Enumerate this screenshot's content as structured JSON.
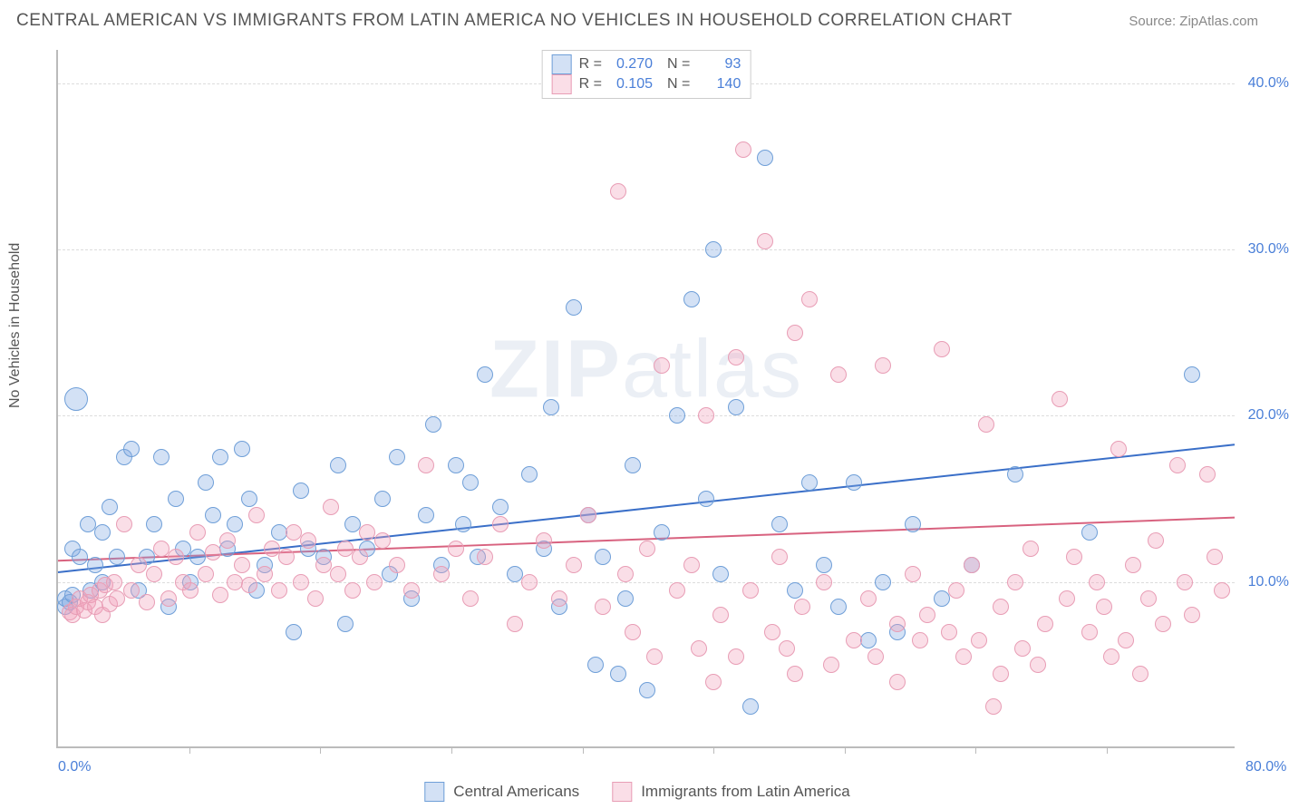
{
  "title": "CENTRAL AMERICAN VS IMMIGRANTS FROM LATIN AMERICA NO VEHICLES IN HOUSEHOLD CORRELATION CHART",
  "source_label": "Source:",
  "source_name": "ZipAtlas.com",
  "y_axis_title": "No Vehicles in Household",
  "watermark": "ZIPatlas",
  "chart": {
    "type": "scatter",
    "xlim": [
      0,
      80
    ],
    "ylim": [
      0,
      42
    ],
    "xtick_labels": [
      "0.0%",
      "80.0%"
    ],
    "xtick_positions": [
      0,
      80
    ],
    "vtick_positions": [
      8.9,
      17.8,
      26.7,
      35.6,
      44.5,
      53.4,
      62.3,
      71.2
    ],
    "ytick_labels": [
      "10.0%",
      "20.0%",
      "30.0%",
      "40.0%"
    ],
    "ytick_positions": [
      10,
      20,
      30,
      40
    ],
    "grid_color": "#dddddd",
    "background_color": "#ffffff",
    "axis_color": "#bbbbbb",
    "label_color": "#4a7fd8",
    "title_color": "#555555",
    "title_fontsize": 19,
    "label_fontsize": 16,
    "marker_radius": 9,
    "marker_border_width": 1.5,
    "trendline_width": 2
  },
  "series": [
    {
      "name": "Central Americans",
      "legend_label": "Central Americans",
      "fill_color": "rgba(130,170,225,0.35)",
      "border_color": "#6f9fd8",
      "trend_color": "#3a6fc8",
      "R": "0.270",
      "N": "93",
      "trendline": {
        "x1": 0,
        "y1": 10.5,
        "x2": 80,
        "y2": 18.2
      },
      "points": [
        [
          0.5,
          8.5
        ],
        [
          0.5,
          9.0
        ],
        [
          0.8,
          8.8
        ],
        [
          1.0,
          12.0
        ],
        [
          1.0,
          9.2
        ],
        [
          1.2,
          21.0,
          13
        ],
        [
          1.5,
          11.5
        ],
        [
          2.0,
          13.5
        ],
        [
          2.2,
          9.5
        ],
        [
          2.5,
          11.0
        ],
        [
          3.0,
          10.0
        ],
        [
          3.0,
          13.0
        ],
        [
          3.5,
          14.5
        ],
        [
          4.0,
          11.5
        ],
        [
          4.5,
          17.5
        ],
        [
          5.0,
          18.0
        ],
        [
          5.5,
          9.5
        ],
        [
          6.0,
          11.5
        ],
        [
          6.5,
          13.5
        ],
        [
          7.0,
          17.5
        ],
        [
          7.5,
          8.5
        ],
        [
          8.0,
          15.0
        ],
        [
          8.5,
          12.0
        ],
        [
          9.0,
          10.0
        ],
        [
          9.5,
          11.5
        ],
        [
          10.0,
          16.0
        ],
        [
          10.5,
          14.0
        ],
        [
          11.0,
          17.5
        ],
        [
          11.5,
          12.0
        ],
        [
          12.0,
          13.5
        ],
        [
          12.5,
          18.0
        ],
        [
          13.0,
          15.0
        ],
        [
          13.5,
          9.5
        ],
        [
          14.0,
          11.0
        ],
        [
          15.0,
          13.0
        ],
        [
          16.0,
          7.0
        ],
        [
          16.5,
          15.5
        ],
        [
          17.0,
          12.0
        ],
        [
          18.0,
          11.5
        ],
        [
          19.0,
          17.0
        ],
        [
          19.5,
          7.5
        ],
        [
          20.0,
          13.5
        ],
        [
          21.0,
          12.0
        ],
        [
          22.0,
          15.0
        ],
        [
          22.5,
          10.5
        ],
        [
          23.0,
          17.5
        ],
        [
          24.0,
          9.0
        ],
        [
          25.0,
          14.0
        ],
        [
          25.5,
          19.5
        ],
        [
          26.0,
          11.0
        ],
        [
          27.0,
          17.0
        ],
        [
          27.5,
          13.5
        ],
        [
          28.0,
          16.0
        ],
        [
          28.5,
          11.5
        ],
        [
          29.0,
          22.5
        ],
        [
          30.0,
          14.5
        ],
        [
          31.0,
          10.5
        ],
        [
          32.0,
          16.5
        ],
        [
          33.0,
          12.0
        ],
        [
          33.5,
          20.5
        ],
        [
          34.0,
          8.5
        ],
        [
          35.0,
          26.5
        ],
        [
          36.0,
          14.0
        ],
        [
          36.5,
          5.0
        ],
        [
          37.0,
          11.5
        ],
        [
          38.0,
          4.5
        ],
        [
          38.5,
          9.0
        ],
        [
          39.0,
          17.0
        ],
        [
          40.0,
          3.5
        ],
        [
          41.0,
          13.0
        ],
        [
          42.0,
          20.0
        ],
        [
          43.0,
          27.0
        ],
        [
          44.0,
          15.0
        ],
        [
          44.5,
          30.0
        ],
        [
          45.0,
          10.5
        ],
        [
          46.0,
          20.5
        ],
        [
          47.0,
          2.5
        ],
        [
          48.0,
          35.5
        ],
        [
          49.0,
          13.5
        ],
        [
          50.0,
          9.5
        ],
        [
          51.0,
          16.0
        ],
        [
          52.0,
          11.0
        ],
        [
          53.0,
          8.5
        ],
        [
          54.0,
          16.0
        ],
        [
          55.0,
          6.5
        ],
        [
          56.0,
          10.0
        ],
        [
          57.0,
          7.0
        ],
        [
          58.0,
          13.5
        ],
        [
          60.0,
          9.0
        ],
        [
          62.0,
          11.0
        ],
        [
          65.0,
          16.5
        ],
        [
          70.0,
          13.0
        ],
        [
          77.0,
          22.5
        ]
      ]
    },
    {
      "name": "Immigrants from Latin America",
      "legend_label": "Immigrants from Latin America",
      "fill_color": "rgba(240,160,185,0.35)",
      "border_color": "#e89db5",
      "trend_color": "#d8627f",
      "R": "0.105",
      "N": "140",
      "trendline": {
        "x1": 0,
        "y1": 11.2,
        "x2": 80,
        "y2": 13.8
      },
      "points": [
        [
          0.8,
          8.2
        ],
        [
          1.0,
          8.0
        ],
        [
          1.2,
          8.5
        ],
        [
          1.5,
          9.0
        ],
        [
          1.8,
          8.3
        ],
        [
          2.0,
          8.8
        ],
        [
          2.2,
          9.2
        ],
        [
          2.5,
          8.5
        ],
        [
          2.8,
          9.5
        ],
        [
          3.0,
          8.0
        ],
        [
          3.2,
          9.8
        ],
        [
          3.5,
          8.7
        ],
        [
          3.8,
          10.0
        ],
        [
          4.0,
          9.0
        ],
        [
          4.5,
          13.5
        ],
        [
          5.0,
          9.5
        ],
        [
          5.5,
          11.0
        ],
        [
          6.0,
          8.8
        ],
        [
          6.5,
          10.5
        ],
        [
          7.0,
          12.0
        ],
        [
          7.5,
          9.0
        ],
        [
          8.0,
          11.5
        ],
        [
          8.5,
          10.0
        ],
        [
          9.0,
          9.5
        ],
        [
          9.5,
          13.0
        ],
        [
          10.0,
          10.5
        ],
        [
          10.5,
          11.8
        ],
        [
          11.0,
          9.2
        ],
        [
          11.5,
          12.5
        ],
        [
          12.0,
          10.0
        ],
        [
          12.5,
          11.0
        ],
        [
          13.0,
          9.8
        ],
        [
          13.5,
          14.0
        ],
        [
          14.0,
          10.5
        ],
        [
          14.5,
          12.0
        ],
        [
          15.0,
          9.5
        ],
        [
          15.5,
          11.5
        ],
        [
          16.0,
          13.0
        ],
        [
          16.5,
          10.0
        ],
        [
          17.0,
          12.5
        ],
        [
          17.5,
          9.0
        ],
        [
          18.0,
          11.0
        ],
        [
          18.5,
          14.5
        ],
        [
          19.0,
          10.5
        ],
        [
          19.5,
          12.0
        ],
        [
          20.0,
          9.5
        ],
        [
          20.5,
          11.5
        ],
        [
          21.0,
          13.0
        ],
        [
          21.5,
          10.0
        ],
        [
          22.0,
          12.5
        ],
        [
          23.0,
          11.0
        ],
        [
          24.0,
          9.5
        ],
        [
          25.0,
          17.0
        ],
        [
          26.0,
          10.5
        ],
        [
          27.0,
          12.0
        ],
        [
          28.0,
          9.0
        ],
        [
          29.0,
          11.5
        ],
        [
          30.0,
          13.5
        ],
        [
          31.0,
          7.5
        ],
        [
          32.0,
          10.0
        ],
        [
          33.0,
          12.5
        ],
        [
          34.0,
          9.0
        ],
        [
          35.0,
          11.0
        ],
        [
          36.0,
          14.0
        ],
        [
          37.0,
          8.5
        ],
        [
          38.0,
          33.5
        ],
        [
          38.5,
          10.5
        ],
        [
          39.0,
          7.0
        ],
        [
          40.0,
          12.0
        ],
        [
          41.0,
          23.0
        ],
        [
          42.0,
          9.5
        ],
        [
          43.0,
          11.0
        ],
        [
          44.0,
          20.0
        ],
        [
          45.0,
          8.0
        ],
        [
          46.0,
          23.5
        ],
        [
          46.5,
          36.0
        ],
        [
          47.0,
          9.5
        ],
        [
          48.0,
          30.5
        ],
        [
          48.5,
          7.0
        ],
        [
          49.0,
          11.5
        ],
        [
          50.0,
          25.0
        ],
        [
          50.5,
          8.5
        ],
        [
          51.0,
          27.0
        ],
        [
          52.0,
          10.0
        ],
        [
          53.0,
          22.5
        ],
        [
          54.0,
          6.5
        ],
        [
          55.0,
          9.0
        ],
        [
          56.0,
          23.0
        ],
        [
          57.0,
          7.5
        ],
        [
          58.0,
          10.5
        ],
        [
          59.0,
          8.0
        ],
        [
          60.0,
          24.0
        ],
        [
          60.5,
          7.0
        ],
        [
          61.0,
          9.5
        ],
        [
          62.0,
          11.0
        ],
        [
          62.5,
          6.5
        ],
        [
          63.0,
          19.5
        ],
        [
          64.0,
          8.5
        ],
        [
          65.0,
          10.0
        ],
        [
          65.5,
          6.0
        ],
        [
          66.0,
          12.0
        ],
        [
          67.0,
          7.5
        ],
        [
          68.0,
          21.0
        ],
        [
          68.5,
          9.0
        ],
        [
          69.0,
          11.5
        ],
        [
          70.0,
          7.0
        ],
        [
          70.5,
          10.0
        ],
        [
          71.0,
          8.5
        ],
        [
          72.0,
          18.0
        ],
        [
          72.5,
          6.5
        ],
        [
          73.0,
          11.0
        ],
        [
          74.0,
          9.0
        ],
        [
          74.5,
          12.5
        ],
        [
          75.0,
          7.5
        ],
        [
          76.0,
          17.0
        ],
        [
          76.5,
          10.0
        ],
        [
          77.0,
          8.0
        ],
        [
          78.0,
          16.5
        ],
        [
          78.5,
          11.5
        ],
        [
          79.0,
          9.5
        ],
        [
          63.5,
          2.5
        ],
        [
          40.5,
          5.5
        ],
        [
          43.5,
          6.0
        ],
        [
          46.0,
          5.5
        ],
        [
          49.5,
          6.0
        ],
        [
          52.5,
          5.0
        ],
        [
          55.5,
          5.5
        ],
        [
          58.5,
          6.5
        ],
        [
          61.5,
          5.5
        ],
        [
          66.5,
          5.0
        ],
        [
          71.5,
          5.5
        ],
        [
          44.5,
          4.0
        ],
        [
          50.0,
          4.5
        ],
        [
          57.0,
          4.0
        ],
        [
          64.0,
          4.5
        ],
        [
          73.5,
          4.5
        ]
      ]
    }
  ]
}
